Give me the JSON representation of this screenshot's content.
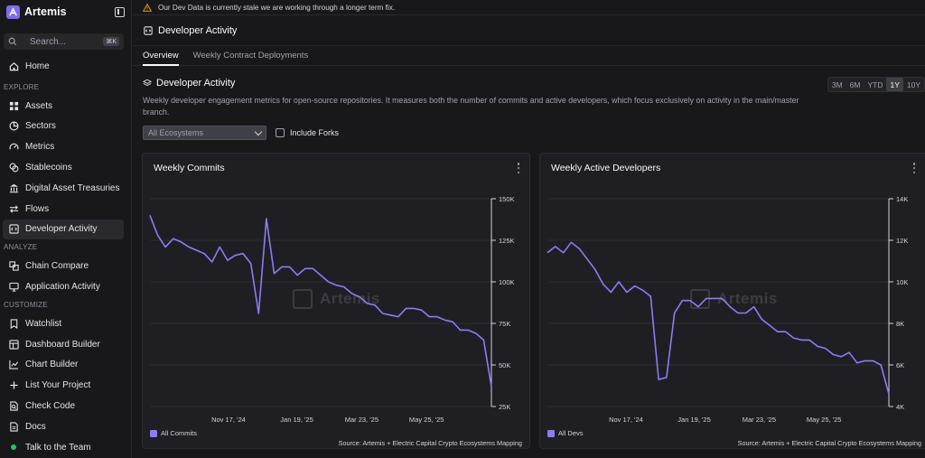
{
  "app": {
    "name": "Artemis"
  },
  "search": {
    "label": "Search...",
    "shortcut": "⌘K"
  },
  "sidebar": {
    "home": "Home",
    "explore_label": "EXPLORE",
    "explore": [
      "Assets",
      "Sectors",
      "Metrics",
      "Stablecoins",
      "Digital Asset Treasuries",
      "Flows",
      "Developer Activity"
    ],
    "analyze_label": "ANALYZE",
    "analyze": [
      "Chain Compare",
      "Application Activity"
    ],
    "customize_label": "CUSTOMIZE",
    "customize": [
      "Watchlist",
      "Dashboard Builder",
      "Chart Builder",
      "List Your Project",
      "Check Code",
      "Docs",
      "Talk to the Team"
    ]
  },
  "banner": {
    "text": "Our Dev Data is currently stale we are working through a longer term fix."
  },
  "page": {
    "title": "Developer Activity",
    "tabs": [
      "Overview",
      "Weekly Contract Deployments"
    ],
    "section_title": "Developer Activity",
    "description": "Weekly developer engagement metrics for open-source repositories. It measures both the number of commits and active developers, which focus exclusively on activity in the main/master branch.",
    "ranges": [
      "3M",
      "6M",
      "YTD",
      "1Y",
      "10Y"
    ],
    "active_range": "1Y",
    "ecosystem_select": "All Ecosystems",
    "include_forks_label": "Include Forks"
  },
  "theme": {
    "accent": "#8b7cf6"
  },
  "chart_data": [
    {
      "type": "line",
      "title": "Weekly Commits",
      "x_ticks": [
        "Nov 17, '24",
        "Jan 19, '25",
        "Mar 23, '25",
        "May 25, '25"
      ],
      "y_ticks": [
        "150K",
        "125K",
        "100K",
        "75K",
        "50K",
        "25K"
      ],
      "ylim": [
        25000,
        150000
      ],
      "legend_position": "bottom-left",
      "source": "Source: Artemis + Electric Capital Crypto Ecosystems Mapping",
      "series": [
        {
          "name": "All Commits",
          "values": [
            140000,
            128000,
            121000,
            126000,
            124000,
            121000,
            119000,
            117000,
            112000,
            121000,
            113000,
            116000,
            117000,
            111000,
            81000,
            138000,
            105000,
            109000,
            109000,
            104000,
            108000,
            108000,
            104000,
            100000,
            98000,
            97000,
            93000,
            91000,
            87000,
            86000,
            81000,
            80000,
            79000,
            84000,
            84000,
            83000,
            79000,
            79000,
            77000,
            76000,
            71000,
            71000,
            69000,
            65000,
            37000
          ]
        }
      ]
    },
    {
      "type": "line",
      "title": "Weekly Active Developers",
      "x_ticks": [
        "Nov 17, '24",
        "Jan 19, '25",
        "Mar 23, '25",
        "May 25, '25"
      ],
      "y_ticks": [
        "14K",
        "12K",
        "10K",
        "8K",
        "6K",
        "4K"
      ],
      "ylim": [
        4000,
        14000
      ],
      "legend_position": "bottom-left",
      "source": "Source: Artemis + Electric Capital Crypto Ecosystems Mapping",
      "series": [
        {
          "name": "All Devs",
          "values": [
            11400,
            11700,
            11400,
            11900,
            11600,
            11100,
            10600,
            9900,
            9500,
            10000,
            9500,
            9800,
            9600,
            9300,
            5300,
            5400,
            8500,
            9100,
            9100,
            8800,
            9200,
            9200,
            9200,
            8800,
            8500,
            8500,
            8800,
            8200,
            7900,
            7600,
            7600,
            7300,
            7200,
            7200,
            6900,
            6800,
            6500,
            6400,
            6600,
            6100,
            6200,
            6200,
            6000,
            4600
          ]
        }
      ]
    }
  ]
}
